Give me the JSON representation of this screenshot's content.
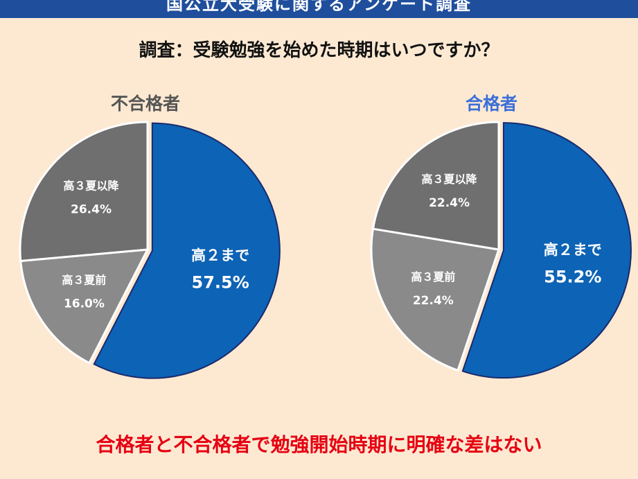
{
  "header": {
    "title": "国公立大受験に関するアンケート調査"
  },
  "subtitle": "調査：受験勉強を始めた時期はいつですか？",
  "conclusion": "合格者と不合格者で勉強開始時期に明確な差はない",
  "colors": {
    "blue": "#0d63b5",
    "dark_gray": "#6f6f6f",
    "light_gray": "#8a8a8a",
    "outline": "#1a2a6c",
    "label_fail": "#555555",
    "label_pass": "#3b6fd8",
    "conclusion": "#e60012"
  },
  "chart_data": [
    {
      "type": "pie",
      "title": "不合格者",
      "slices": [
        {
          "label": "高２まで",
          "value": 57.5,
          "display": "57.5%"
        },
        {
          "label": "高３夏前",
          "value": 16.0,
          "display": "16.0%"
        },
        {
          "label": "高３夏以降",
          "value": 26.4,
          "display": "26.4%"
        }
      ]
    },
    {
      "type": "pie",
      "title": "合格者",
      "slices": [
        {
          "label": "高２まで",
          "value": 55.2,
          "display": "55.2%"
        },
        {
          "label": "高３夏前",
          "value": 22.4,
          "display": "22.4%"
        },
        {
          "label": "高３夏以降",
          "value": 22.4,
          "display": "22.4%"
        }
      ]
    }
  ]
}
